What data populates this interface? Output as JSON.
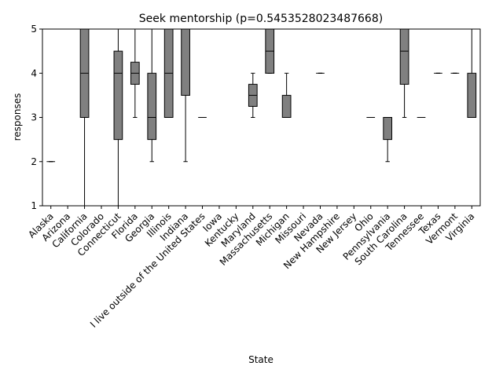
{
  "chart_data": {
    "type": "box",
    "title": "Seek mentorship (p=0.5453528023487668)",
    "xlabel": "State",
    "ylabel": "responses",
    "ylim": [
      1,
      5
    ],
    "yticks": [
      1,
      2,
      3,
      4,
      5
    ],
    "grid": false,
    "box_color": "#808080",
    "categories": [
      "Alaska",
      "Arizona",
      "California",
      "Colorado",
      "Connecticut",
      "Florida",
      "Georgia",
      "Illinois",
      "Indiana",
      "I live outside of the United States",
      "Iowa",
      "Kentucky",
      "Maryland",
      "Massachusetts",
      "Michigan",
      "Missouri",
      "Nevada",
      "New Hampshire",
      "New Jersey",
      "Ohio",
      "Pennsylvania",
      "South Carolina",
      "Tennessee",
      "Texas",
      "Vermont",
      "Virginia"
    ],
    "boxes": [
      {
        "min": 2,
        "q1": 2,
        "median": 2,
        "q3": 2,
        "max": 2
      },
      {
        "min": 5,
        "q1": 5,
        "median": 5,
        "q3": 5,
        "max": 5
      },
      {
        "min": 1,
        "q1": 3,
        "median": 4,
        "q3": 5,
        "max": 5
      },
      {
        "min": 5,
        "q1": 5,
        "median": 5,
        "q3": 5,
        "max": 5
      },
      {
        "min": 1,
        "q1": 2.5,
        "median": 4,
        "q3": 4.5,
        "max": 5
      },
      {
        "min": 3,
        "q1": 3.75,
        "median": 4,
        "q3": 4.25,
        "max": 5
      },
      {
        "min": 2,
        "q1": 2.5,
        "median": 3,
        "q3": 4,
        "max": 5
      },
      {
        "min": 3,
        "q1": 3,
        "median": 4,
        "q3": 5,
        "max": 5
      },
      {
        "min": 2,
        "q1": 3.5,
        "median": 5,
        "q3": 5,
        "max": 5
      },
      {
        "min": 3,
        "q1": 3,
        "median": 3,
        "q3": 3,
        "max": 3
      },
      {
        "min": 5,
        "q1": 5,
        "median": 5,
        "q3": 5,
        "max": 5
      },
      {
        "min": 5,
        "q1": 5,
        "median": 5,
        "q3": 5,
        "max": 5
      },
      {
        "min": 3,
        "q1": 3.25,
        "median": 3.5,
        "q3": 3.75,
        "max": 4
      },
      {
        "min": 4,
        "q1": 4,
        "median": 4.5,
        "q3": 5,
        "max": 5
      },
      {
        "min": 3,
        "q1": 3,
        "median": 3,
        "q3": 3.5,
        "max": 4
      },
      {
        "min": 5,
        "q1": 5,
        "median": 5,
        "q3": 5,
        "max": 5
      },
      {
        "min": 4,
        "q1": 4,
        "median": 4,
        "q3": 4,
        "max": 4
      },
      {
        "min": 5,
        "q1": 5,
        "median": 5,
        "q3": 5,
        "max": 5
      },
      {
        "min": 5,
        "q1": 5,
        "median": 5,
        "q3": 5,
        "max": 5
      },
      {
        "min": 3,
        "q1": 3,
        "median": 3,
        "q3": 3,
        "max": 3
      },
      {
        "min": 2,
        "q1": 2.5,
        "median": 3,
        "q3": 3,
        "max": 3
      },
      {
        "min": 3,
        "q1": 3.75,
        "median": 4.5,
        "q3": 5,
        "max": 5
      },
      {
        "min": 3,
        "q1": 3,
        "median": 3,
        "q3": 3,
        "max": 3
      },
      {
        "min": 4,
        "q1": 4,
        "median": 4,
        "q3": 4,
        "max": 4
      },
      {
        "min": 4,
        "q1": 4,
        "median": 4,
        "q3": 4,
        "max": 4
      },
      {
        "min": 3,
        "q1": 3,
        "median": 3,
        "q3": 4,
        "max": 5
      }
    ]
  }
}
